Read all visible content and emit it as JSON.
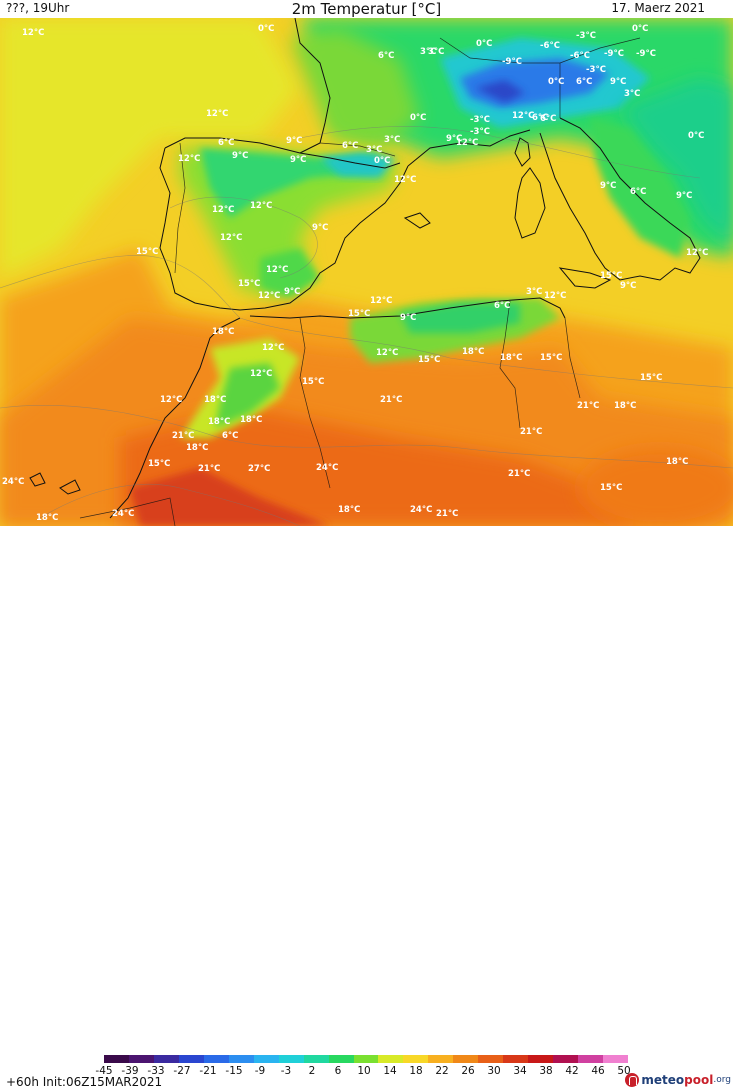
{
  "header": {
    "left": "???, 19Uhr",
    "title": "2m Temperatur [°C]",
    "date": "17. Maerz 2021"
  },
  "footer": {
    "run": "+60h  Init:06Z15MAR2021",
    "brand_part1": "meteo",
    "brand_part2": "pool",
    "brand_part3": ".org"
  },
  "legend": {
    "ticks": [
      "-45",
      "-39",
      "-33",
      "-27",
      "-21",
      "-15",
      "-9",
      "-3",
      "2",
      "6",
      "10",
      "14",
      "18",
      "22",
      "26",
      "30",
      "34",
      "38",
      "42",
      "46",
      "50"
    ],
    "colors": [
      "#3a0a4a",
      "#4b1470",
      "#3b2aa0",
      "#2a46d0",
      "#2a6ae8",
      "#2c8ef0",
      "#2ab4f0",
      "#20d0d8",
      "#20d8a0",
      "#28d860",
      "#7ae030",
      "#d8ea28",
      "#f8d828",
      "#f8b020",
      "#f08818",
      "#e86018",
      "#d83818",
      "#c81818",
      "#b01050",
      "#d040a0",
      "#f080d0"
    ]
  },
  "map": {
    "temperature_labels": [
      "12°C",
      "0°C",
      "6°C",
      "3°C",
      "0°C",
      "0°C",
      "-3°C",
      "3°C",
      "-6°C",
      "-9°C",
      "-9°C",
      "-3°C",
      "-6°C",
      "-9°C",
      "0°C",
      "6°C",
      "9°C",
      "3°C",
      "12°C",
      "0°C",
      "-3°C",
      "6°C",
      "-3°C",
      "12°C",
      "6°C",
      "12°C",
      "0°C",
      "6°C",
      "9°C",
      "6°C",
      "3°C",
      "12°C",
      "9°C",
      "0°C",
      "9°C",
      "3°C",
      "12°C",
      "9°C",
      "6°C",
      "9°C",
      "12°C",
      "12°C",
      "9°C",
      "12°C",
      "15°C",
      "12°C",
      "15°C",
      "9°C",
      "12°C",
      "15°C",
      "9°C",
      "12°C",
      "9°C",
      "18°C",
      "15°C",
      "12°C",
      "12°C",
      "9°C",
      "6°C",
      "3°C",
      "12°C",
      "12°C",
      "15°C",
      "18°C",
      "18°C",
      "15°C",
      "15°C",
      "12°C",
      "15°C",
      "12°C",
      "18°C",
      "21°C",
      "18°C",
      "18°C",
      "6°C",
      "21°C",
      "18°C",
      "15°C",
      "21°C",
      "27°C",
      "24°C",
      "21°C",
      "21°C",
      "18°C",
      "15°C",
      "18°C",
      "24°C",
      "21°C",
      "24°C",
      "24°C",
      "18°C",
      "21°C",
      "18°C"
    ]
  }
}
